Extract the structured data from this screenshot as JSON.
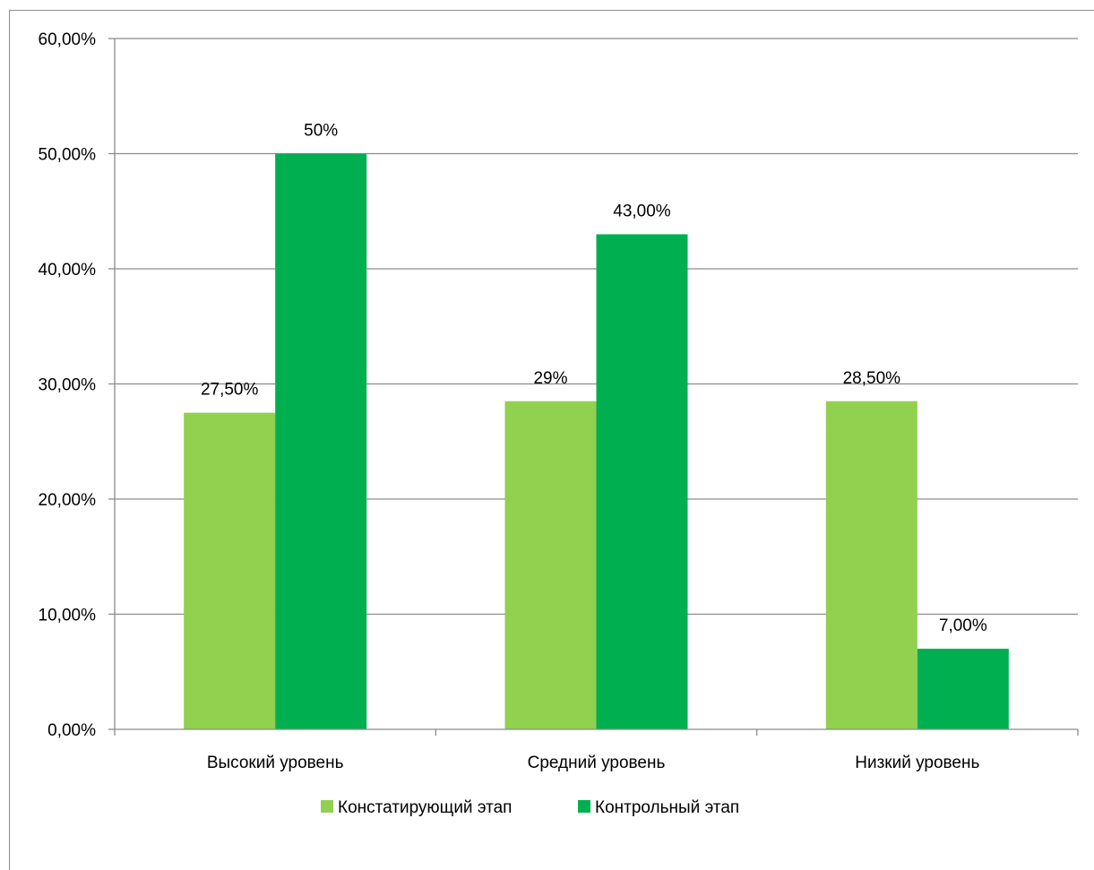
{
  "chart_data": {
    "type": "bar",
    "title": "",
    "xlabel": "",
    "ylabel": "",
    "categories": [
      "Высокий уровень",
      "Средний уровень",
      "Низкий уровень"
    ],
    "series": [
      {
        "name": "Констатирующий этап",
        "color": "#92d050",
        "values": [
          0.275,
          0.285,
          0.285
        ],
        "labels": [
          "27,50%",
          "29%",
          "28,50%"
        ]
      },
      {
        "name": "Контрольный этап",
        "color": "#00b050",
        "values": [
          0.5,
          0.43,
          0.07
        ],
        "labels": [
          "50%",
          "43,00%",
          "7,00%"
        ]
      }
    ],
    "ylim": [
      0,
      0.6
    ],
    "yticks": [
      0,
      0.1,
      0.2,
      0.3,
      0.4,
      0.5,
      0.6
    ],
    "ytick_labels": [
      "0,00%",
      "10,00%",
      "20,00%",
      "30,00%",
      "40,00%",
      "50,00%",
      "60,00%"
    ],
    "grid": true,
    "legend": "bottom"
  }
}
